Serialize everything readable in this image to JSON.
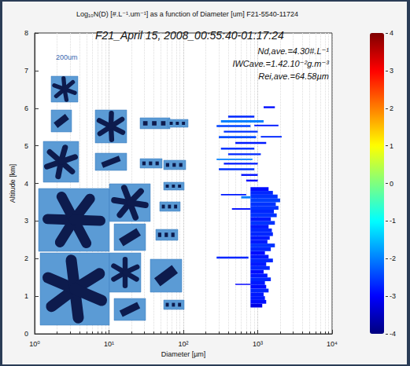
{
  "chart_data": {
    "type": "heatmap",
    "title": "Log₁₀N(D) [#.L⁻¹.um⁻¹] as a function of Diameter [um] F21-5540-11724",
    "x_label": "Diameter [µm]",
    "y_label": "Altitude [km]",
    "log": "x",
    "grid": true,
    "xlim": [
      1,
      10000
    ],
    "xticks": [
      {
        "value": 1,
        "label": "10⁰"
      },
      {
        "value": 10,
        "label": "10¹"
      },
      {
        "value": 100,
        "label": "10²"
      },
      {
        "value": 1000,
        "label": "10³"
      },
      {
        "value": 10000,
        "label": "10⁴"
      }
    ],
    "ylim": [
      0,
      8
    ],
    "yticks": [
      0,
      1,
      2,
      3,
      4,
      5,
      6,
      7,
      8
    ],
    "annotations": [
      "F21_April 15, 2008_00:55:40-01:17:24",
      "Nd,ave.=4.30#.L⁻¹",
      "IWCave.=1.42.10⁻²g.m⁻³",
      "Rei,ave.=64.58µm",
      "200um"
    ],
    "colorbar": {
      "range": [
        -4,
        4
      ],
      "ticks": [
        -4,
        -3,
        -2,
        -1,
        0,
        1,
        2,
        3,
        4
      ]
    },
    "cells": [
      {
        "d": [
          800,
          1150
        ],
        "alt": [
          0.7,
          0.8
        ],
        "v": -3.2
      },
      {
        "d": [
          800,
          1300
        ],
        "alt": [
          0.8,
          0.9
        ],
        "v": -2.9
      },
      {
        "d": [
          800,
          1250
        ],
        "alt": [
          0.9,
          1.0
        ],
        "v": -2.8
      },
      {
        "d": [
          800,
          1200
        ],
        "alt": [
          1.0,
          1.1
        ],
        "v": -2.8
      },
      {
        "d": [
          800,
          1400
        ],
        "alt": [
          1.1,
          1.2
        ],
        "v": -2.7
      },
      {
        "d": [
          800,
          1300
        ],
        "alt": [
          1.2,
          1.3
        ],
        "v": -2.9
      },
      {
        "d": [
          800,
          1250
        ],
        "alt": [
          1.3,
          1.4
        ],
        "v": -2.8
      },
      {
        "d": [
          800,
          1500
        ],
        "alt": [
          1.4,
          1.5
        ],
        "v": -2.7
      },
      {
        "d": [
          800,
          1350
        ],
        "alt": [
          1.5,
          1.6
        ],
        "v": -2.8
      },
      {
        "d": [
          800,
          1200
        ],
        "alt": [
          1.6,
          1.7
        ],
        "v": -2.9
      },
      {
        "d": [
          800,
          1450
        ],
        "alt": [
          1.7,
          1.8
        ],
        "v": -2.7
      },
      {
        "d": [
          800,
          1300
        ],
        "alt": [
          1.8,
          1.9
        ],
        "v": -2.8
      },
      {
        "d": [
          800,
          1600
        ],
        "alt": [
          1.9,
          2.0
        ],
        "v": -2.7
      },
      {
        "d": [
          800,
          1400
        ],
        "alt": [
          2.0,
          2.1
        ],
        "v": -2.8
      },
      {
        "d": [
          800,
          1250
        ],
        "alt": [
          2.1,
          2.2
        ],
        "v": -2.9
      },
      {
        "d": [
          800,
          1500
        ],
        "alt": [
          2.2,
          2.3
        ],
        "v": -2.7
      },
      {
        "d": [
          800,
          1700
        ],
        "alt": [
          2.3,
          2.4
        ],
        "v": -2.6
      },
      {
        "d": [
          800,
          1350
        ],
        "alt": [
          2.4,
          2.5
        ],
        "v": -2.8
      },
      {
        "d": [
          800,
          1450
        ],
        "alt": [
          2.5,
          2.6
        ],
        "v": -2.8
      },
      {
        "d": [
          800,
          1600
        ],
        "alt": [
          2.6,
          2.7
        ],
        "v": -2.7
      },
      {
        "d": [
          800,
          1550
        ],
        "alt": [
          2.7,
          2.8
        ],
        "v": -2.7
      },
      {
        "d": [
          800,
          1400
        ],
        "alt": [
          2.8,
          2.9
        ],
        "v": -2.8
      },
      {
        "d": [
          800,
          1700
        ],
        "alt": [
          2.9,
          3.0
        ],
        "v": -2.6
      },
      {
        "d": [
          800,
          1500
        ],
        "alt": [
          3.0,
          3.1
        ],
        "v": -2.8
      },
      {
        "d": [
          800,
          1800
        ],
        "alt": [
          3.1,
          3.2
        ],
        "v": -2.6
      },
      {
        "d": [
          800,
          1650
        ],
        "alt": [
          3.2,
          3.3
        ],
        "v": -2.7
      },
      {
        "d": [
          800,
          1900
        ],
        "alt": [
          3.3,
          3.4
        ],
        "v": -2.6
      },
      {
        "d": [
          800,
          1750
        ],
        "alt": [
          3.4,
          3.5
        ],
        "v": -2.6
      },
      {
        "d": [
          800,
          2000
        ],
        "alt": [
          3.5,
          3.6
        ],
        "v": -2.5
      },
      {
        "d": [
          800,
          1850
        ],
        "alt": [
          3.6,
          3.7
        ],
        "v": -2.6
      },
      {
        "d": [
          800,
          1600
        ],
        "alt": [
          3.7,
          3.8
        ],
        "v": -2.7
      },
      {
        "d": [
          800,
          1400
        ],
        "alt": [
          3.8,
          3.9
        ],
        "v": -2.9
      },
      {
        "d": [
          600,
          800
        ],
        "alt": [
          3.6,
          3.66
        ],
        "v": -2.0
      },
      {
        "d": [
          320,
          700
        ],
        "alt": [
          3.68,
          3.72
        ],
        "v": -2.8
      },
      {
        "d": [
          450,
          800
        ],
        "alt": [
          3.3,
          3.34
        ],
        "v": -2.9
      },
      {
        "d": [
          280,
          750
        ],
        "alt": [
          2.0,
          2.05
        ],
        "v": -2.7
      },
      {
        "d": [
          500,
          800
        ],
        "alt": [
          1.3,
          1.33
        ],
        "v": -3.0
      },
      {
        "d": [
          700,
          1000
        ],
        "alt": [
          4.05,
          4.1
        ],
        "v": -3.0
      },
      {
        "d": [
          600,
          1000
        ],
        "alt": [
          4.2,
          4.25
        ],
        "v": -2.9
      },
      {
        "d": [
          300,
          900
        ],
        "alt": [
          4.35,
          4.4
        ],
        "v": -2.6
      },
      {
        "d": [
          350,
          1000
        ],
        "alt": [
          4.5,
          4.55
        ],
        "v": -2.8
      },
      {
        "d": [
          280,
          850
        ],
        "alt": [
          4.62,
          4.66
        ],
        "v": -2.0
      },
      {
        "d": [
          400,
          1100
        ],
        "alt": [
          4.75,
          4.8
        ],
        "v": -2.7
      },
      {
        "d": [
          320,
          900
        ],
        "alt": [
          4.9,
          4.95
        ],
        "v": -2.6
      },
      {
        "d": [
          500,
          1300
        ],
        "alt": [
          5.05,
          5.1
        ],
        "v": -2.8
      },
      {
        "d": [
          300,
          950
        ],
        "alt": [
          5.2,
          5.26
        ],
        "v": -2.4
      },
      {
        "d": [
          1100,
          2100
        ],
        "alt": [
          5.22,
          5.26
        ],
        "v": -2.7
      },
      {
        "d": [
          350,
          1000
        ],
        "alt": [
          5.35,
          5.4
        ],
        "v": -2.6
      },
      {
        "d": [
          280,
          800
        ],
        "alt": [
          5.5,
          5.55
        ],
        "v": -2.5
      },
      {
        "d": [
          900,
          1900
        ],
        "alt": [
          5.52,
          5.56
        ],
        "v": -2.8
      },
      {
        "d": [
          320,
          1200
        ],
        "alt": [
          5.62,
          5.68
        ],
        "v": -2.0
      },
      {
        "d": [
          400,
          900
        ],
        "alt": [
          5.75,
          5.8
        ],
        "v": -2.7
      },
      {
        "d": [
          1200,
          1700
        ],
        "alt": [
          6.0,
          6.05
        ],
        "v": -2.9
      }
    ]
  }
}
